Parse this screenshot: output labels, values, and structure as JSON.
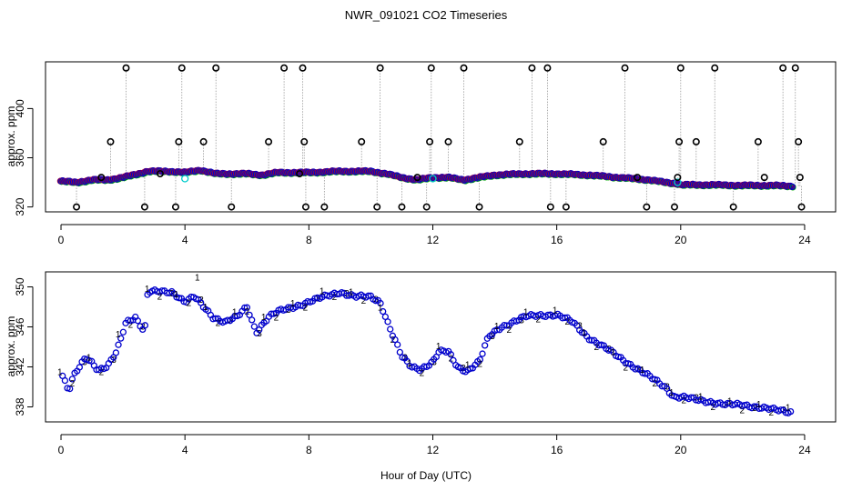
{
  "title": "NWR_091021  CO2 Timeseries",
  "xlabel": "Hour of Day (UTC)",
  "colors": {
    "series1": "#dd0000",
    "series2": "#00aa00",
    "series3": "#0000cc",
    "highlight": "#00cccc",
    "outlier": "#000000",
    "spike": "#999999"
  },
  "chart_data": [
    {
      "type": "scatter",
      "name": "top-panel",
      "ylabel": "approx. ppm",
      "xlim": [
        -0.5,
        25
      ],
      "ylim": [
        316,
        438
      ],
      "xticks": [
        0,
        4,
        8,
        12,
        16,
        20,
        24
      ],
      "yticks": [
        320,
        360,
        400
      ],
      "markers": "circles",
      "baseline": [
        [
          0,
          341
        ],
        [
          0.5,
          340
        ],
        [
          1,
          342
        ],
        [
          1.5,
          342
        ],
        [
          2,
          344
        ],
        [
          2.5,
          347
        ],
        [
          2.8,
          349
        ],
        [
          3.5,
          349
        ],
        [
          4,
          348
        ],
        [
          4.5,
          350
        ],
        [
          5,
          347
        ],
        [
          6,
          347
        ],
        [
          6.5,
          346
        ],
        [
          7,
          348
        ],
        [
          8,
          348
        ],
        [
          9,
          349
        ],
        [
          10,
          349
        ],
        [
          10.5,
          347
        ],
        [
          11,
          344
        ],
        [
          11.5,
          342
        ],
        [
          12,
          344
        ],
        [
          12.5,
          344
        ],
        [
          13,
          342
        ],
        [
          13.5,
          344
        ],
        [
          14,
          346
        ],
        [
          15,
          347
        ],
        [
          15.5,
          347
        ],
        [
          16,
          347
        ],
        [
          17,
          346
        ],
        [
          18,
          344
        ],
        [
          19,
          342
        ],
        [
          19.5,
          340
        ],
        [
          19.9,
          339
        ],
        [
          20,
          338
        ],
        [
          21,
          338
        ],
        [
          22,
          337.5
        ],
        [
          23,
          337.5
        ],
        [
          23.5,
          337
        ]
      ],
      "outliers": [
        [
          0.5,
          320
        ],
        [
          1.3,
          344
        ],
        [
          1.6,
          373
        ],
        [
          2.1,
          433
        ],
        [
          2.7,
          320
        ],
        [
          3.2,
          347
        ],
        [
          3.7,
          320
        ],
        [
          3.8,
          373
        ],
        [
          3.9,
          433
        ],
        [
          4.6,
          373
        ],
        [
          5.0,
          433
        ],
        [
          5.5,
          320
        ],
        [
          6.7,
          373
        ],
        [
          7.2,
          433
        ],
        [
          7.7,
          347
        ],
        [
          7.8,
          433
        ],
        [
          7.85,
          373
        ],
        [
          7.9,
          320
        ],
        [
          8.5,
          320
        ],
        [
          9.7,
          373
        ],
        [
          10.2,
          320
        ],
        [
          10.3,
          433
        ],
        [
          11.0,
          320
        ],
        [
          11.5,
          344
        ],
        [
          11.8,
          320
        ],
        [
          11.9,
          373
        ],
        [
          11.95,
          433
        ],
        [
          12.5,
          373
        ],
        [
          13.0,
          433
        ],
        [
          13.5,
          320
        ],
        [
          14.8,
          373
        ],
        [
          15.2,
          433
        ],
        [
          15.7,
          433
        ],
        [
          15.8,
          320
        ],
        [
          16.3,
          320
        ],
        [
          17.5,
          373
        ],
        [
          18.2,
          433
        ],
        [
          18.6,
          344
        ],
        [
          18.9,
          320
        ],
        [
          19.8,
          320
        ],
        [
          19.9,
          344
        ],
        [
          19.95,
          373
        ],
        [
          20.0,
          433
        ],
        [
          20.5,
          373
        ],
        [
          21.1,
          433
        ],
        [
          21.7,
          320
        ],
        [
          22.5,
          373
        ],
        [
          22.7,
          344
        ],
        [
          23.3,
          433
        ],
        [
          23.7,
          433
        ],
        [
          23.8,
          373
        ],
        [
          23.85,
          344
        ],
        [
          23.9,
          320
        ]
      ],
      "highlights": [
        [
          4.0,
          343
        ],
        [
          12.0,
          343
        ],
        [
          19.9,
          340
        ]
      ]
    },
    {
      "type": "scatter",
      "name": "bottom-panel",
      "ylabel": "approx. ppm",
      "xlim": [
        -0.5,
        25
      ],
      "ylim": [
        336.5,
        351.5
      ],
      "xticks": [
        0,
        4,
        8,
        12,
        16,
        20,
        24
      ],
      "yticks": [
        338,
        342,
        346,
        350
      ],
      "markers": "digits 1 / 2 / 3 per series",
      "series": [
        {
          "name": "1",
          "offset": 0.4
        },
        {
          "name": "2",
          "offset": -0.4
        },
        {
          "name": "3",
          "offset": 0
        }
      ],
      "baseline": [
        [
          0,
          341.5
        ],
        [
          0.25,
          339.5
        ],
        [
          0.4,
          341
        ],
        [
          0.6,
          342
        ],
        [
          0.8,
          343
        ],
        [
          1.0,
          342.5
        ],
        [
          1.2,
          341.7
        ],
        [
          1.5,
          342
        ],
        [
          1.8,
          343.5
        ],
        [
          2.1,
          346.5
        ],
        [
          2.4,
          347
        ],
        [
          2.7,
          345.5
        ],
        [
          2.8,
          349.5
        ],
        [
          3.2,
          349.5
        ],
        [
          3.6,
          349.5
        ],
        [
          4.0,
          348.5
        ],
        [
          4.3,
          349
        ],
        [
          4.6,
          348
        ],
        [
          4.9,
          347
        ],
        [
          5.3,
          346.5
        ],
        [
          5.7,
          347
        ],
        [
          6.0,
          348
        ],
        [
          6.3,
          345.5
        ],
        [
          6.7,
          347
        ],
        [
          7.0,
          347.5
        ],
        [
          7.5,
          348
        ],
        [
          8.0,
          348.5
        ],
        [
          8.5,
          349
        ],
        [
          9.0,
          349.5
        ],
        [
          9.5,
          349
        ],
        [
          10.0,
          349
        ],
        [
          10.3,
          348.5
        ],
        [
          10.6,
          346
        ],
        [
          11.0,
          343
        ],
        [
          11.3,
          342
        ],
        [
          11.6,
          341.8
        ],
        [
          12.0,
          342.5
        ],
        [
          12.2,
          343.5
        ],
        [
          12.5,
          343.5
        ],
        [
          12.8,
          342
        ],
        [
          13.1,
          341.6
        ],
        [
          13.5,
          342.5
        ],
        [
          13.8,
          345
        ],
        [
          14.2,
          346
        ],
        [
          14.6,
          346.5
        ],
        [
          15.0,
          347
        ],
        [
          15.5,
          347.2
        ],
        [
          16.0,
          347.2
        ],
        [
          16.5,
          346.5
        ],
        [
          17.0,
          345
        ],
        [
          17.5,
          344
        ],
        [
          18.0,
          343
        ],
        [
          18.5,
          342
        ],
        [
          19.0,
          341
        ],
        [
          19.5,
          340
        ],
        [
          19.8,
          339
        ],
        [
          20.0,
          339
        ],
        [
          20.5,
          338.7
        ],
        [
          21.0,
          338.5
        ],
        [
          21.5,
          338.2
        ],
        [
          22.0,
          338.2
        ],
        [
          22.5,
          338
        ],
        [
          23.0,
          337.7
        ],
        [
          23.5,
          337.5
        ]
      ],
      "annotations": [
        [
          4.4,
          351
        ]
      ]
    }
  ]
}
